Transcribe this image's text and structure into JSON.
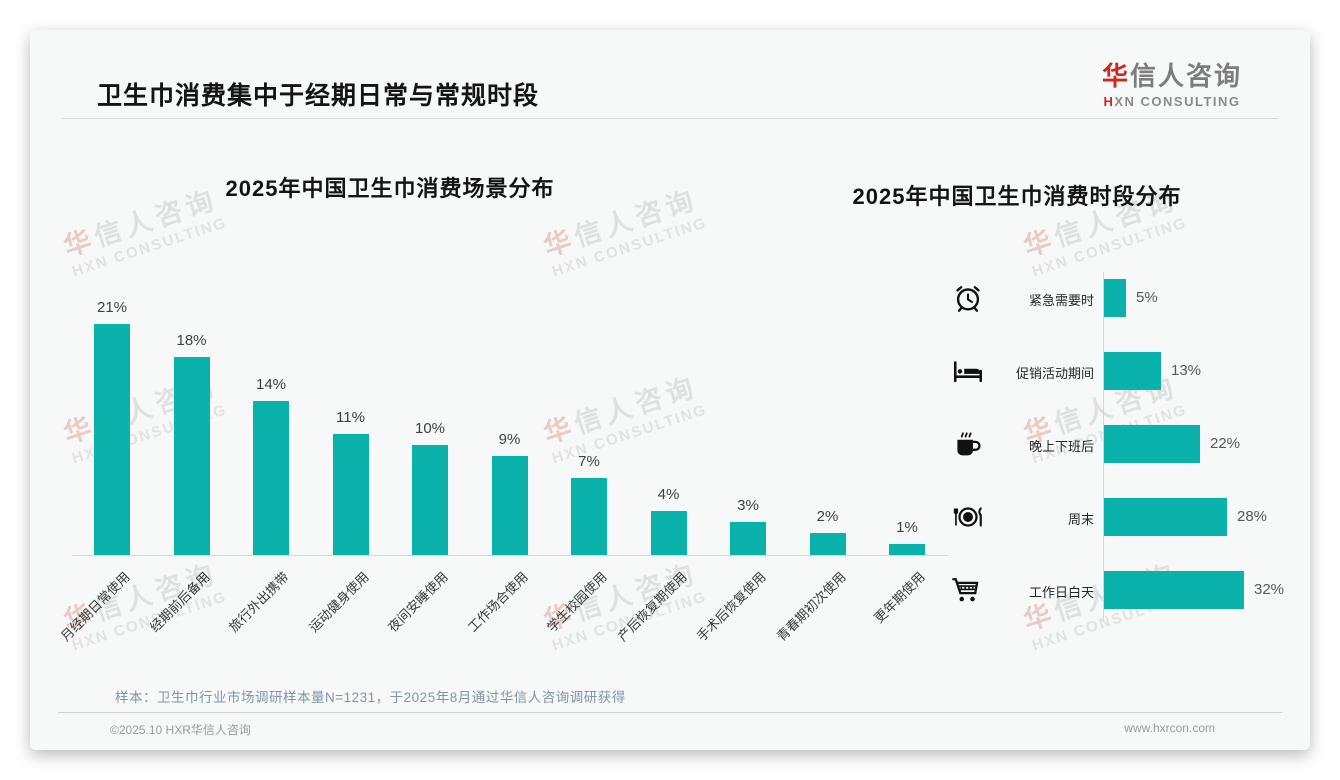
{
  "page": {
    "title": "卫生巾消费集中于经期日常与常规时段",
    "logo": {
      "cn_first": "华",
      "cn_rest": "信人咨询",
      "en_first": "H",
      "en_rest": "XN CONSULTING"
    },
    "watermark": {
      "cn": "华信人咨询",
      "en": "HXN CONSULTING"
    },
    "note": "样本：卫生巾行业市场调研样本量N=1231，于2025年8月通过华信人咨询调研获得",
    "footer": {
      "left": "©2025.10 HXR华信人咨询",
      "right": "www.hxrcon.com"
    }
  },
  "colors": {
    "bar_teal": "#0ab2ab",
    "title_black": "#141414",
    "logo_red": "#cc2a1e",
    "note_gray_blue": "#8195a6",
    "footer_gray": "#9b9b9b"
  },
  "chart_data": [
    {
      "type": "bar",
      "orientation": "vertical",
      "title": "2025年中国卫生巾消费场景分布",
      "categories": [
        "月经期日常使用",
        "经期前后备用",
        "旅行外出携带",
        "运动健身使用",
        "夜间安睡使用",
        "工作场合使用",
        "学生校园使用",
        "产后恢复期使用",
        "手术后恢复使用",
        "青春期初次使用",
        "更年期使用"
      ],
      "values": [
        21,
        18,
        14,
        11,
        10,
        9,
        7,
        4,
        3,
        2,
        1
      ],
      "unit": "%",
      "bar_color": "#0ab2ab",
      "ylim": [
        0,
        23
      ],
      "grid": false,
      "value_labels": "above bars"
    },
    {
      "type": "bar",
      "orientation": "horizontal",
      "title": "2025年中国卫生巾消费时段分布",
      "categories": [
        "紧急需要时",
        "促销活动期间",
        "晚上下班后",
        "周末",
        "工作日白天"
      ],
      "values": [
        5,
        13,
        22,
        28,
        32
      ],
      "icons": [
        "alarm-clock",
        "bed",
        "coffee",
        "dining",
        "shopping-cart"
      ],
      "unit": "%",
      "bar_color": "#0ab2ab",
      "xlim": [
        0,
        35
      ],
      "grid": false,
      "value_labels": "right of bars"
    }
  ]
}
